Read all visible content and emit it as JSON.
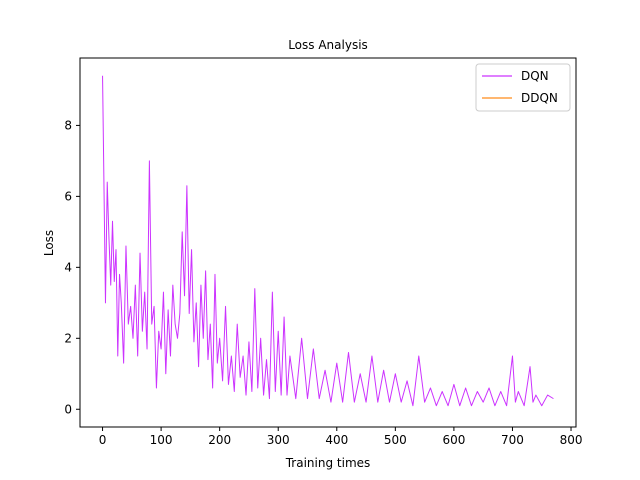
{
  "chart_data": {
    "type": "line",
    "title": "Loss Analysis",
    "xlabel": "Training times",
    "ylabel": "Loss",
    "xlim": [
      -38.5,
      808.5
    ],
    "ylim": [
      -0.5,
      9.9
    ],
    "xticks": [
      0,
      100,
      200,
      300,
      400,
      500,
      600,
      700,
      800
    ],
    "yticks": [
      0,
      2,
      4,
      6,
      8
    ],
    "grid": false,
    "legend_position": "top-right",
    "series": [
      {
        "name": "DQN",
        "color": "#cc33ff",
        "x": [
          0,
          5,
          8,
          11,
          14,
          17,
          20,
          23,
          26,
          29,
          32,
          36,
          40,
          44,
          48,
          52,
          56,
          60,
          64,
          68,
          72,
          76,
          80,
          84,
          88,
          92,
          96,
          100,
          104,
          108,
          112,
          116,
          120,
          124,
          128,
          132,
          136,
          140,
          144,
          148,
          152,
          156,
          160,
          164,
          168,
          172,
          176,
          180,
          184,
          188,
          192,
          196,
          200,
          205,
          210,
          215,
          220,
          225,
          230,
          235,
          240,
          245,
          250,
          255,
          260,
          265,
          270,
          275,
          280,
          285,
          290,
          295,
          300,
          305,
          310,
          315,
          320,
          330,
          340,
          350,
          360,
          370,
          380,
          390,
          400,
          410,
          420,
          430,
          440,
          450,
          460,
          470,
          480,
          490,
          500,
          510,
          520,
          530,
          540,
          550,
          560,
          570,
          580,
          590,
          600,
          610,
          620,
          630,
          640,
          650,
          660,
          670,
          680,
          690,
          700,
          705,
          710,
          720,
          730,
          735,
          740,
          750,
          760,
          770
        ],
        "values": [
          9.4,
          3.0,
          6.4,
          4.8,
          3.5,
          5.3,
          3.6,
          4.5,
          1.5,
          3.8,
          3.0,
          1.3,
          4.6,
          2.4,
          2.9,
          2.0,
          3.5,
          1.5,
          4.4,
          2.2,
          3.3,
          1.7,
          7.0,
          2.4,
          2.9,
          0.6,
          2.2,
          1.7,
          3.3,
          1.0,
          2.8,
          1.5,
          3.5,
          2.4,
          2.0,
          2.7,
          5.0,
          3.2,
          6.3,
          2.7,
          4.5,
          1.9,
          3.0,
          1.2,
          3.5,
          2.0,
          3.9,
          1.4,
          2.4,
          0.6,
          3.8,
          1.3,
          2.0,
          0.8,
          2.9,
          0.7,
          1.5,
          0.5,
          2.4,
          0.9,
          1.5,
          0.4,
          1.9,
          0.5,
          3.4,
          0.6,
          2.0,
          0.4,
          1.4,
          0.3,
          3.3,
          0.5,
          2.2,
          0.4,
          2.6,
          0.4,
          1.5,
          0.3,
          2.0,
          0.3,
          1.7,
          0.3,
          1.1,
          0.2,
          1.3,
          0.2,
          1.6,
          0.2,
          1.0,
          0.2,
          1.5,
          0.2,
          1.1,
          0.2,
          1.0,
          0.2,
          0.8,
          0.1,
          1.5,
          0.2,
          0.6,
          0.1,
          0.5,
          0.1,
          0.7,
          0.1,
          0.6,
          0.1,
          0.5,
          0.2,
          0.6,
          0.1,
          0.5,
          0.1,
          1.5,
          0.2,
          0.5,
          0.1,
          1.2,
          0.2,
          0.4,
          0.1,
          0.4,
          0.3
        ]
      },
      {
        "name": "DDQN",
        "color": "#ff8c1a",
        "x": [],
        "values": []
      }
    ]
  }
}
